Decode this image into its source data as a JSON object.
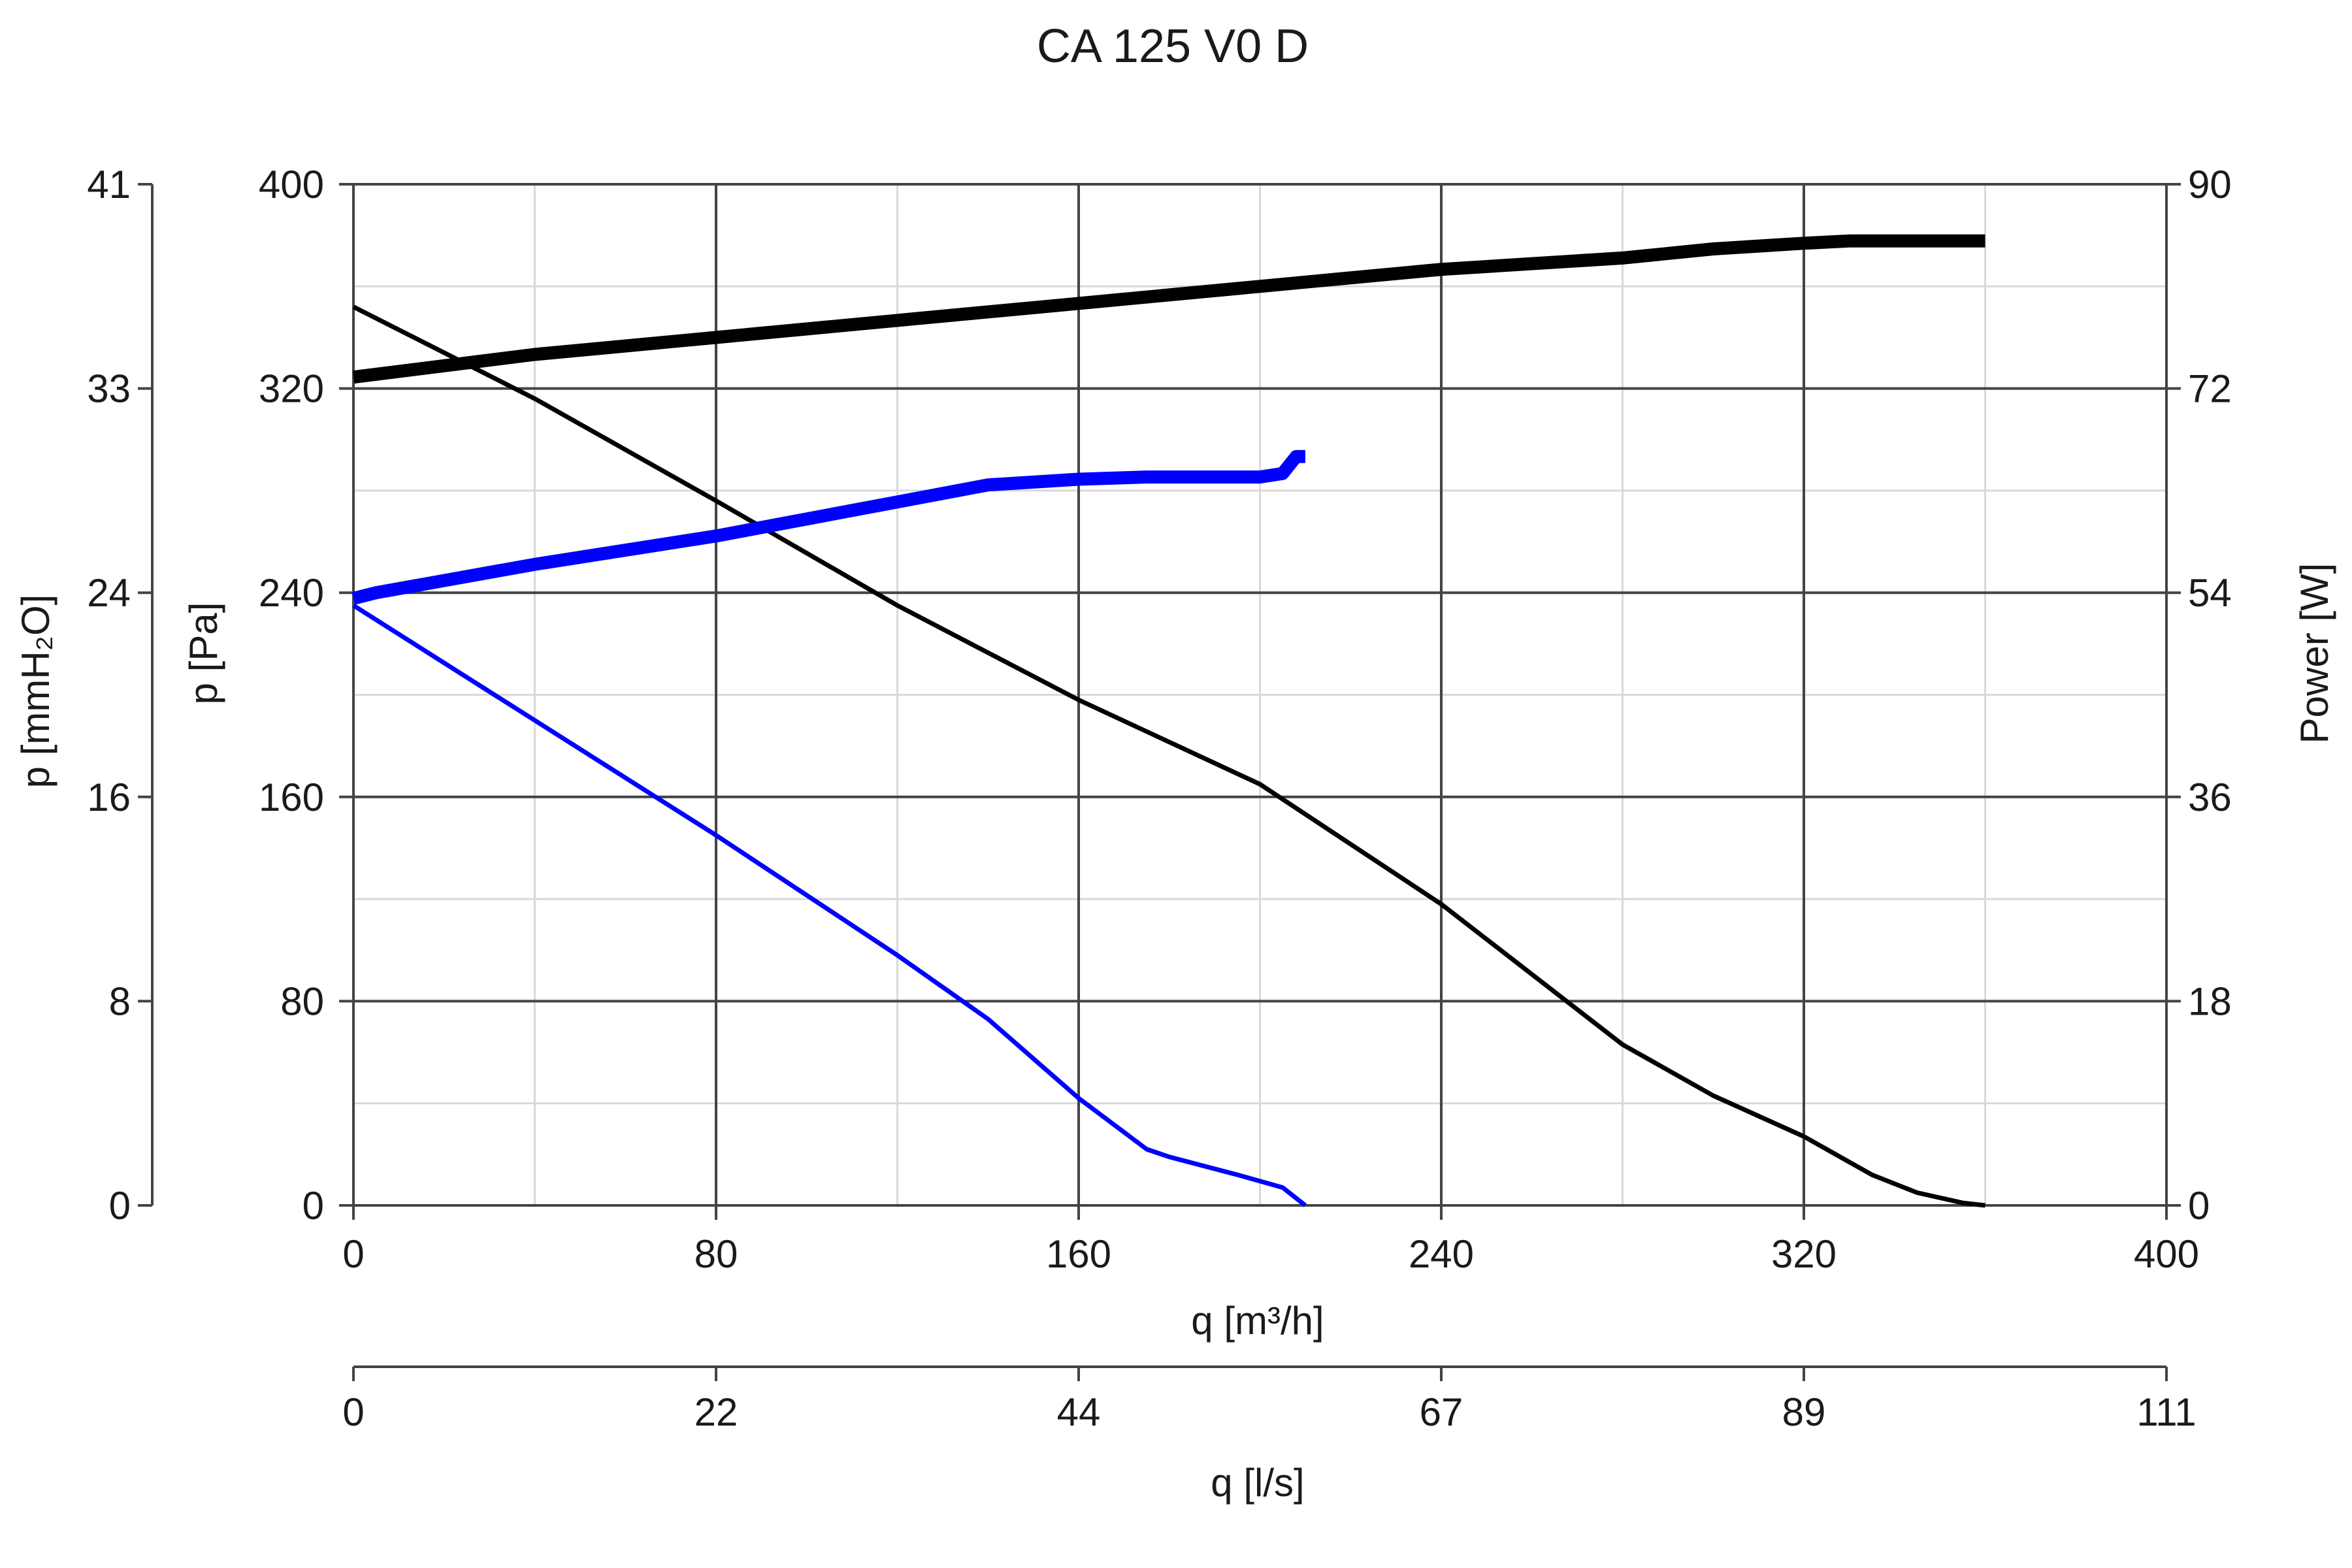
{
  "chart_data": {
    "type": "line",
    "title": "CA 125 V0 D",
    "xlabel": "q [m³/h]",
    "xlabel2": "q [l/s]",
    "ylabel_left": "p [Pa]",
    "ylabel_far_left": "p [mmH₂O]",
    "ylabel_right": "Power [W]",
    "xlim": [
      0,
      400
    ],
    "ylim": [
      0,
      400
    ],
    "ylim_right": [
      0,
      90
    ],
    "ylim_far_left": [
      0,
      41
    ],
    "grid": true,
    "x_ticks": [
      "0",
      "80",
      "160",
      "240",
      "320",
      "400"
    ],
    "x2_ticks": [
      "0",
      "22",
      "44",
      "67",
      "89",
      "111"
    ],
    "y_ticks": [
      "0",
      "80",
      "160",
      "240",
      "320",
      "400"
    ],
    "y_far_left_ticks": [
      "0",
      "8",
      "16",
      "24",
      "33",
      "41"
    ],
    "y_right_ticks": [
      "0",
      "18",
      "36",
      "54",
      "72",
      "90"
    ],
    "series": [
      {
        "axis": "left",
        "color": "#000000",
        "width": "thin",
        "x": [
          0,
          40,
          80,
          120,
          160,
          200,
          240,
          280,
          300,
          320,
          335,
          345,
          355,
          360
        ],
        "y": [
          352,
          316,
          276,
          235,
          198,
          165,
          118,
          63,
          43,
          27,
          12,
          5,
          1,
          0
        ]
      },
      {
        "axis": "right",
        "color": "#000000",
        "width": "thick",
        "x": [
          0,
          40,
          80,
          120,
          160,
          200,
          240,
          280,
          300,
          320,
          330,
          360
        ],
        "y": [
          73,
          75,
          76.5,
          78,
          79.5,
          81,
          82.5,
          83.5,
          84.3,
          84.8,
          85,
          85
        ]
      },
      {
        "axis": "left",
        "color": "#0000ff",
        "width": "thin",
        "x": [
          0,
          40,
          80,
          120,
          140,
          160,
          175,
          180,
          195,
          205,
          210
        ],
        "y": [
          235,
          190,
          145,
          98,
          73,
          42,
          22,
          19,
          12,
          7,
          0
        ]
      },
      {
        "axis": "right",
        "color": "#0000ff",
        "width": "thick",
        "x": [
          0,
          5,
          40,
          80,
          120,
          140,
          160,
          175,
          200,
          205,
          208,
          210
        ],
        "y": [
          53.5,
          54,
          56.5,
          59,
          62,
          63.5,
          64,
          64.2,
          64.2,
          64.5,
          66,
          66
        ]
      }
    ]
  }
}
